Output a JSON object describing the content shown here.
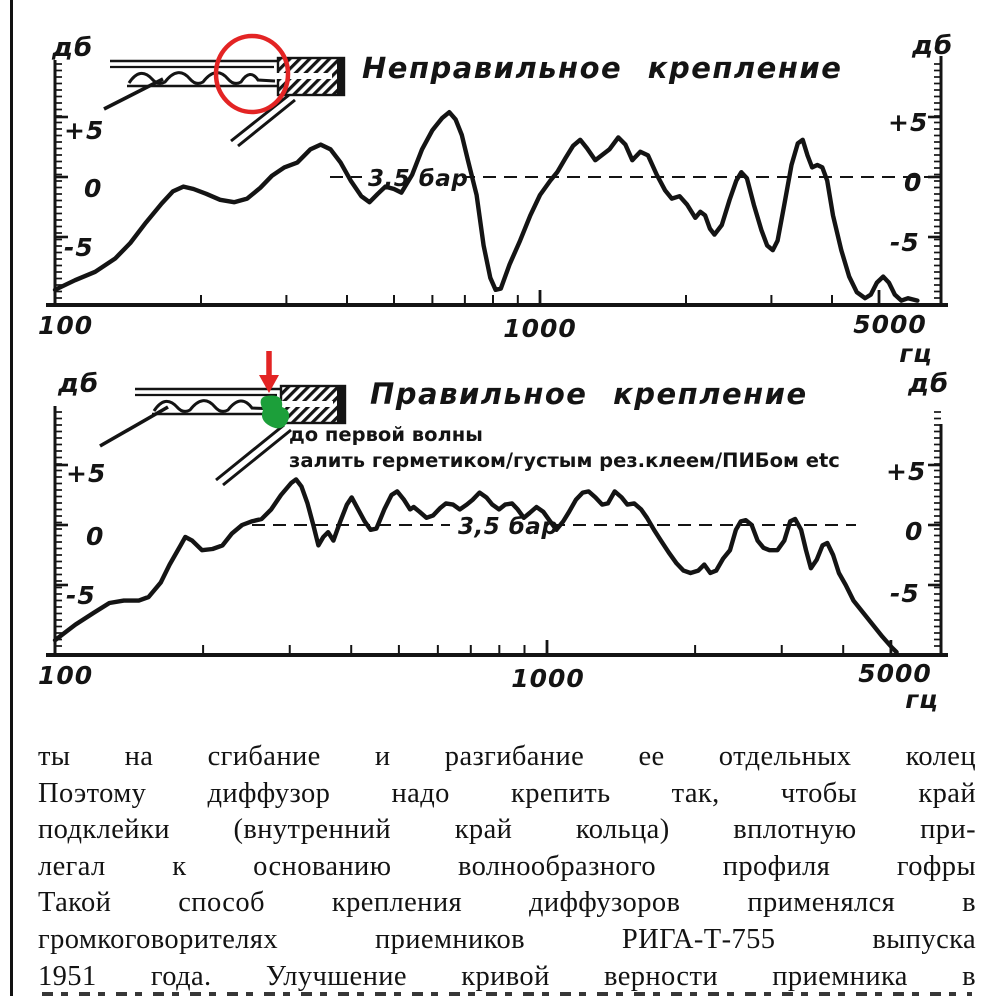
{
  "page": {
    "background": "#ffffff",
    "ink": "#141414"
  },
  "annotations": {
    "red_color": "#e32424",
    "green_color": "#1c9f3a",
    "note_line1": "до первой волны",
    "note_line2": "залить герметиком/густым рез.клеем/ПИБом etc"
  },
  "chart_data": [
    {
      "type": "line",
      "title": "Неправильное крепление",
      "ylabel": "дб",
      "xlabel": "гц",
      "xlim": [
        100,
        6800
      ],
      "ylim": [
        -10.5,
        9.5
      ],
      "grid": false,
      "legend": "none",
      "xticks": [
        100,
        1000,
        5000
      ],
      "xtick_labels": [
        "100",
        "1000",
        "5000"
      ],
      "minor_xticks": [
        200,
        300,
        400,
        500,
        600,
        700,
        800,
        900,
        2000,
        3000,
        4000
      ],
      "yticks": [
        5,
        0,
        -5
      ],
      "ytick_labels": [
        "+5",
        "0",
        "-5"
      ],
      "ref_line": {
        "label": "3,5 бар",
        "db": 0
      },
      "series": [
        {
          "name": "frequency-response-incorrect-mounting",
          "points": [
            [
              100,
              -9.4
            ],
            [
              110,
              -8.6
            ],
            [
              121,
              -7.9
            ],
            [
              133,
              -6.8
            ],
            [
              143,
              -5.5
            ],
            [
              154,
              -3.8
            ],
            [
              166,
              -2.2
            ],
            [
              175,
              -1.2
            ],
            [
              184,
              -0.8
            ],
            [
              193,
              -1.0
            ],
            [
              205,
              -1.4
            ],
            [
              219,
              -1.9
            ],
            [
              234,
              -2.1
            ],
            [
              249,
              -1.8
            ],
            [
              265,
              -0.9
            ],
            [
              280,
              0.1
            ],
            [
              297,
              0.8
            ],
            [
              316,
              1.2
            ],
            [
              336,
              2.3
            ],
            [
              353,
              2.7
            ],
            [
              370,
              2.3
            ],
            [
              388,
              1.2
            ],
            [
              407,
              -0.3
            ],
            [
              428,
              -1.6
            ],
            [
              445,
              -2.1
            ],
            [
              463,
              -1.4
            ],
            [
              480,
              -0.8
            ],
            [
              500,
              -1.0
            ],
            [
              518,
              -1.3
            ],
            [
              545,
              0.2
            ],
            [
              571,
              2.3
            ],
            [
              600,
              3.9
            ],
            [
              628,
              4.9
            ],
            [
              650,
              5.4
            ],
            [
              670,
              4.8
            ],
            [
              690,
              3.5
            ],
            [
              710,
              1.4
            ],
            [
              740,
              -1.5
            ],
            [
              765,
              -5.7
            ],
            [
              790,
              -8.4
            ],
            [
              810,
              -9.4
            ],
            [
              830,
              -9.3
            ],
            [
              865,
              -7.3
            ],
            [
              910,
              -5.3
            ],
            [
              955,
              -3.2
            ],
            [
              1000,
              -1.5
            ],
            [
              1050,
              -0.3
            ],
            [
              1085,
              0.4
            ],
            [
              1130,
              1.6
            ],
            [
              1170,
              2.6
            ],
            [
              1210,
              3.1
            ],
            [
              1250,
              2.4
            ],
            [
              1300,
              1.4
            ],
            [
              1340,
              1.8
            ],
            [
              1390,
              2.3
            ],
            [
              1450,
              3.3
            ],
            [
              1500,
              2.7
            ],
            [
              1550,
              1.4
            ],
            [
              1610,
              2.1
            ],
            [
              1670,
              1.8
            ],
            [
              1740,
              0.2
            ],
            [
              1810,
              -1.1
            ],
            [
              1870,
              -1.8
            ],
            [
              1940,
              -1.6
            ],
            [
              2010,
              -2.3
            ],
            [
              2090,
              -3.4
            ],
            [
              2140,
              -2.9
            ],
            [
              2190,
              -3.2
            ],
            [
              2240,
              -4.3
            ],
            [
              2290,
              -4.8
            ],
            [
              2370,
              -4.0
            ],
            [
              2460,
              -1.9
            ],
            [
              2540,
              -0.3
            ],
            [
              2600,
              0.4
            ],
            [
              2670,
              -0.1
            ],
            [
              2760,
              -2.3
            ],
            [
              2860,
              -4.4
            ],
            [
              2940,
              -5.7
            ],
            [
              3020,
              -6.1
            ],
            [
              3090,
              -5.3
            ],
            [
              3190,
              -2.3
            ],
            [
              3300,
              1.0
            ],
            [
              3400,
              2.8
            ],
            [
              3480,
              3.1
            ],
            [
              3560,
              1.8
            ],
            [
              3640,
              0.8
            ],
            [
              3730,
              1.0
            ],
            [
              3820,
              0.8
            ],
            [
              3910,
              -0.3
            ],
            [
              4020,
              -3.2
            ],
            [
              4180,
              -6.1
            ],
            [
              4340,
              -8.3
            ],
            [
              4500,
              -9.6
            ],
            [
              4680,
              -10.1
            ],
            [
              4810,
              -9.8
            ],
            [
              4950,
              -8.8
            ],
            [
              5100,
              -8.3
            ],
            [
              5240,
              -8.8
            ],
            [
              5390,
              -9.8
            ],
            [
              5560,
              -10.3
            ],
            [
              5740,
              -10.1
            ],
            [
              6000,
              -10.3
            ]
          ]
        }
      ]
    },
    {
      "type": "line",
      "title": "Правильное крепление",
      "ylabel": "дб",
      "xlabel": "гц",
      "xlim": [
        100,
        6400
      ],
      "ylim": [
        -10.7,
        9.4
      ],
      "grid": false,
      "legend": "none",
      "xticks": [
        100,
        1000,
        5000
      ],
      "xtick_labels": [
        "100",
        "1000",
        "5000"
      ],
      "minor_xticks": [
        200,
        300,
        400,
        500,
        600,
        700,
        800,
        900,
        2000,
        3000,
        4000
      ],
      "yticks": [
        5,
        0,
        -5
      ],
      "ytick_labels": [
        "+5",
        "0",
        "-5"
      ],
      "ref_line": {
        "label": "3,5 бар",
        "db": 0
      },
      "series": [
        {
          "name": "frequency-response-correct-mounting",
          "points": [
            [
              100,
              -9.6
            ],
            [
              110,
              -8.3
            ],
            [
              120,
              -7.3
            ],
            [
              129,
              -6.5
            ],
            [
              138,
              -6.3
            ],
            [
              148,
              -6.3
            ],
            [
              155,
              -6.0
            ],
            [
              164,
              -4.8
            ],
            [
              171,
              -3.3
            ],
            [
              180,
              -1.7
            ],
            [
              184,
              -1.0
            ],
            [
              190,
              -1.3
            ],
            [
              199,
              -2.1
            ],
            [
              209,
              -2.0
            ],
            [
              219,
              -1.7
            ],
            [
              229,
              -0.7
            ],
            [
              240,
              0
            ],
            [
              251,
              0.3
            ],
            [
              263,
              0.5
            ],
            [
              275,
              1.3
            ],
            [
              288,
              2.5
            ],
            [
              302,
              3.5
            ],
            [
              309,
              3.8
            ],
            [
              317,
              3.2
            ],
            [
              326,
              1.8
            ],
            [
              335,
              0
            ],
            [
              343,
              -1.7
            ],
            [
              351,
              -1.0
            ],
            [
              359,
              -0.6
            ],
            [
              368,
              -1.3
            ],
            [
              380,
              0.3
            ],
            [
              392,
              1.7
            ],
            [
              401,
              2.3
            ],
            [
              412,
              1.4
            ],
            [
              426,
              0.3
            ],
            [
              438,
              -0.4
            ],
            [
              450,
              -0.3
            ],
            [
              467,
              1.3
            ],
            [
              483,
              2.5
            ],
            [
              496,
              2.8
            ],
            [
              512,
              2.1
            ],
            [
              527,
              1.3
            ],
            [
              536,
              1.5
            ],
            [
              551,
              1.1
            ],
            [
              569,
              0.6
            ],
            [
              587,
              0.8
            ],
            [
              606,
              1.4
            ],
            [
              623,
              1.8
            ],
            [
              644,
              1.7
            ],
            [
              665,
              1.3
            ],
            [
              687,
              1.7
            ],
            [
              706,
              2.1
            ],
            [
              729,
              2.7
            ],
            [
              753,
              2.3
            ],
            [
              774,
              1.7
            ],
            [
              799,
              1.3
            ],
            [
              822,
              1.7
            ],
            [
              849,
              1.8
            ],
            [
              872,
              1.3
            ],
            [
              897,
              0.6
            ],
            [
              922,
              1.0
            ],
            [
              952,
              1.5
            ],
            [
              983,
              1.1
            ],
            [
              1011,
              0.4
            ],
            [
              1045,
              -0.4
            ],
            [
              1079,
              0.3
            ],
            [
              1109,
              1.1
            ],
            [
              1145,
              2.1
            ],
            [
              1182,
              2.7
            ],
            [
              1215,
              2.8
            ],
            [
              1254,
              2.3
            ],
            [
              1295,
              1.7
            ],
            [
              1330,
              1.8
            ],
            [
              1373,
              2.8
            ],
            [
              1418,
              2.3
            ],
            [
              1457,
              1.7
            ],
            [
              1504,
              1.8
            ],
            [
              1553,
              1.3
            ],
            [
              1597,
              0.6
            ],
            [
              1650,
              -0.4
            ],
            [
              1704,
              -1.3
            ],
            [
              1768,
              -2.3
            ],
            [
              1834,
              -3.2
            ],
            [
              1894,
              -3.8
            ],
            [
              1957,
              -4.0
            ],
            [
              2030,
              -3.8
            ],
            [
              2088,
              -3.3
            ],
            [
              2147,
              -4.0
            ],
            [
              2208,
              -3.8
            ],
            [
              2280,
              -2.8
            ],
            [
              2355,
              -2.1
            ],
            [
              2421,
              -0.4
            ],
            [
              2477,
              0.3
            ],
            [
              2535,
              0.4
            ],
            [
              2606,
              0
            ],
            [
              2680,
              -1.3
            ],
            [
              2755,
              -1.9
            ],
            [
              2833,
              -2.1
            ],
            [
              2939,
              -2.1
            ],
            [
              3036,
              -1.3
            ],
            [
              3121,
              0.3
            ],
            [
              3194,
              0.5
            ],
            [
              3284,
              -0.4
            ],
            [
              3360,
              -2.1
            ],
            [
              3438,
              -3.6
            ],
            [
              3533,
              -2.9
            ],
            [
              3631,
              -1.7
            ],
            [
              3713,
              -1.5
            ],
            [
              3815,
              -2.5
            ],
            [
              3920,
              -4.0
            ],
            [
              4047,
              -5.0
            ],
            [
              4197,
              -6.3
            ],
            [
              4390,
              -7.3
            ],
            [
              4591,
              -8.3
            ],
            [
              4802,
              -9.3
            ],
            [
              5022,
              -10.2
            ],
            [
              5135,
              -10.6
            ]
          ]
        }
      ]
    }
  ],
  "body_text": {
    "lines": [
      "ты на сгибание и разгибание ее отдельных колец",
      "Поэтому диффузор надо крепить так, чтобы край",
      "подклейки (внутренний край кольца) вплотную при-",
      "легал к основанию волнообразного профиля гофры",
      "Такой способ крепления диффузоров применялся в",
      "громкоговорителях приемников РИГА-Т-755 выпуска",
      "1951 года. Улучшение кривой верности приемника в"
    ]
  }
}
